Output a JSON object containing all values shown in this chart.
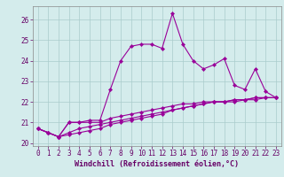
{
  "title": "",
  "xlabel": "Windchill (Refroidissement éolien,°C)",
  "ylabel": "",
  "background_color": "#d4ecec",
  "line_color": "#990099",
  "grid_color": "#aacccc",
  "xlim": [
    -0.5,
    23.5
  ],
  "ylim": [
    19.85,
    26.65
  ],
  "yticks": [
    20,
    21,
    22,
    23,
    24,
    25,
    26
  ],
  "xticks": [
    0,
    1,
    2,
    3,
    4,
    5,
    6,
    7,
    8,
    9,
    10,
    11,
    12,
    13,
    14,
    15,
    16,
    17,
    18,
    19,
    20,
    21,
    22,
    23
  ],
  "series1": [
    20.7,
    20.5,
    20.3,
    21.0,
    21.0,
    21.1,
    21.1,
    22.6,
    24.0,
    24.7,
    24.8,
    24.8,
    24.6,
    26.3,
    24.8,
    24.0,
    23.6,
    23.8,
    24.1,
    22.8,
    22.6,
    23.6,
    22.5,
    22.2
  ],
  "series2": [
    20.7,
    20.5,
    20.3,
    21.0,
    21.0,
    21.0,
    21.0,
    21.2,
    21.3,
    21.4,
    21.5,
    21.6,
    21.7,
    21.8,
    21.9,
    21.9,
    22.0,
    22.0,
    22.0,
    22.1,
    22.1,
    22.2,
    22.2,
    22.2
  ],
  "series3": [
    20.7,
    20.5,
    20.3,
    20.5,
    20.7,
    20.8,
    20.9,
    21.0,
    21.1,
    21.2,
    21.3,
    21.4,
    21.5,
    21.6,
    21.7,
    21.8,
    21.9,
    22.0,
    22.0,
    22.0,
    22.1,
    22.1,
    22.2,
    22.2
  ],
  "series4": [
    20.7,
    20.5,
    20.3,
    20.4,
    20.5,
    20.6,
    20.7,
    20.9,
    21.0,
    21.1,
    21.2,
    21.3,
    21.4,
    21.6,
    21.7,
    21.8,
    21.9,
    22.0,
    22.0,
    22.1,
    22.1,
    22.2,
    22.2,
    22.2
  ],
  "tick_fontsize": 5.5,
  "xlabel_fontsize": 6.0,
  "marker_size": 2.2
}
